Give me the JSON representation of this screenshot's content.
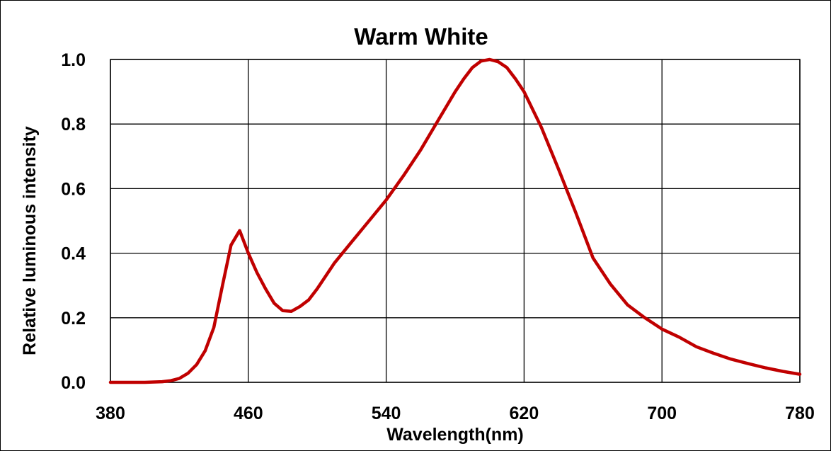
{
  "chart_data": {
    "type": "line",
    "title": "Warm White",
    "xlabel": "Wavelength(nm)",
    "ylabel": "Relative luminous intensity",
    "xlim": [
      380,
      780
    ],
    "ylim": [
      0.0,
      1.0
    ],
    "xticks": [
      380,
      460,
      540,
      620,
      700,
      780
    ],
    "xtick_labels": [
      "380",
      "460",
      "540",
      "620",
      "700",
      "780"
    ],
    "yticks": [
      0.0,
      0.2,
      0.4,
      0.6,
      0.8,
      1.0
    ],
    "ytick_labels": [
      "0.0",
      "0.2",
      "0.4",
      "0.6",
      "0.8",
      "1.0"
    ],
    "grid": true,
    "series": [
      {
        "color": "#C00000",
        "x": [
          380,
          390,
          400,
          410,
          415,
          420,
          425,
          430,
          435,
          440,
          445,
          450,
          455,
          460,
          465,
          470,
          475,
          480,
          485,
          490,
          495,
          500,
          505,
          510,
          520,
          530,
          540,
          550,
          560,
          570,
          575,
          580,
          585,
          590,
          595,
          600,
          605,
          610,
          615,
          620,
          630,
          640,
          650,
          660,
          670,
          680,
          690,
          700,
          710,
          720,
          730,
          740,
          750,
          760,
          770,
          780
        ],
        "y": [
          0.0,
          0.0,
          0.0,
          0.002,
          0.005,
          0.012,
          0.028,
          0.055,
          0.098,
          0.17,
          0.3,
          0.425,
          0.47,
          0.4,
          0.34,
          0.29,
          0.245,
          0.222,
          0.22,
          0.235,
          0.255,
          0.29,
          0.33,
          0.37,
          0.435,
          0.5,
          0.565,
          0.64,
          0.72,
          0.81,
          0.855,
          0.9,
          0.94,
          0.975,
          0.995,
          1.0,
          0.993,
          0.975,
          0.94,
          0.9,
          0.79,
          0.66,
          0.525,
          0.385,
          0.305,
          0.24,
          0.2,
          0.165,
          0.14,
          0.11,
          0.09,
          0.072,
          0.058,
          0.045,
          0.034,
          0.025
        ]
      }
    ]
  }
}
